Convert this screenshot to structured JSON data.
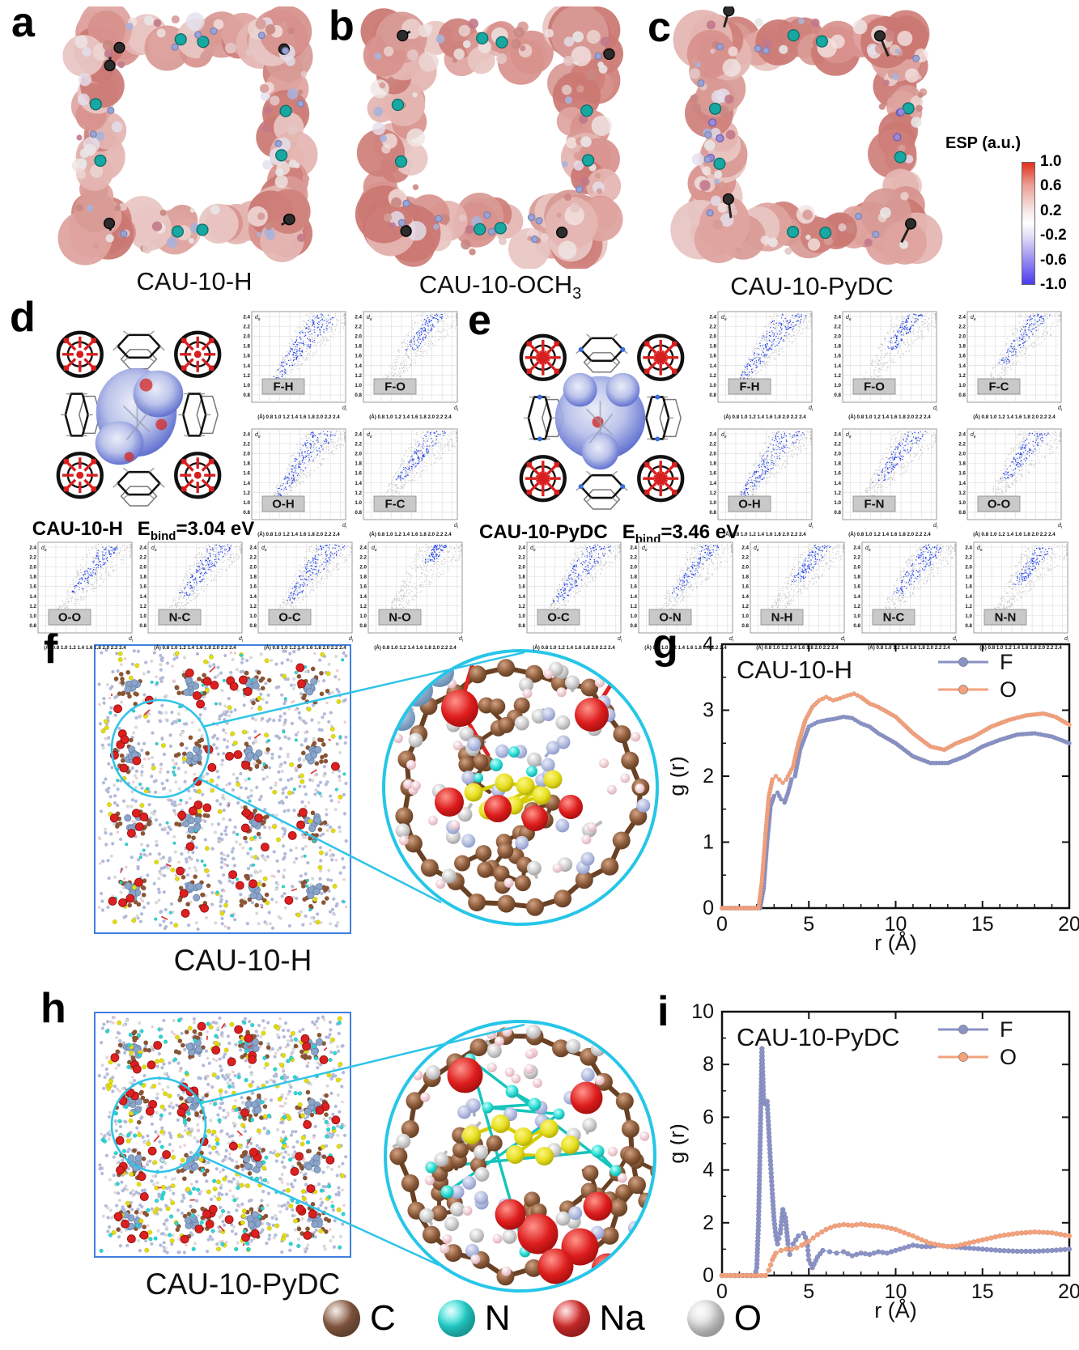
{
  "figure": {
    "panel_letters": {
      "a": "a",
      "b": "b",
      "c": "c",
      "d": "d",
      "e": "e",
      "f": "f",
      "g": "g",
      "h": "h",
      "i": "i"
    }
  },
  "esp_panels": [
    {
      "id": "a",
      "caption": "CAU-10-H",
      "caption_sub": ""
    },
    {
      "id": "b",
      "caption": "CAU-10-OCH",
      "caption_sub": "3"
    },
    {
      "id": "c",
      "caption": "CAU-10-PyDC",
      "caption_sub": ""
    }
  ],
  "colorbar": {
    "title": "ESP (a.u.)",
    "tick_labels": [
      "1.0",
      "0.6",
      "0.2",
      "-0.2",
      "-0.6",
      "-1.0"
    ],
    "top_color": "#e2301c",
    "mid_color": "#ffffff",
    "bottom_color": "#4b3cf0"
  },
  "hirshfeld_panels": [
    {
      "id": "d",
      "model": "CAU-10-H",
      "ebind_symbol": "E",
      "ebind_sub": "bind",
      "ebind_value": "=3.04 eV",
      "grid_pairs": [
        "F-H",
        "F-O",
        "O-H",
        "F-C"
      ],
      "row_pairs": [
        "O-O",
        "N-C",
        "O-C",
        "N-O"
      ]
    },
    {
      "id": "e",
      "model": "CAU-10-PyDC",
      "ebind_symbol": "E",
      "ebind_sub": "bind",
      "ebind_value": "=3.46 eV",
      "grid_pairs": [
        "F-H",
        "F-O",
        "F-C",
        "O-H",
        "F-N",
        "O-O"
      ],
      "row_pairs": [
        "O-C",
        "O-N",
        "N-H",
        "N-C",
        "N-N"
      ]
    }
  ],
  "fingerprint_axes": {
    "y_tick_labels": [
      "2.4",
      "2.2",
      "2.0",
      "1.8",
      "1.6",
      "1.4",
      "1.2",
      "1.0",
      "0.8"
    ],
    "x_tick_line": "(Å) 0.8 1.0 1.2 1.4 1.6 1.8 2.0 2.2 2.4",
    "y_symbol": {
      "main": "d",
      "sub": "e"
    },
    "x_symbol": {
      "main": "d",
      "sub": "i"
    }
  },
  "md_panels": [
    {
      "id": "f",
      "caption": "CAU-10-H"
    },
    {
      "id": "h",
      "caption": "CAU-10-PyDC"
    }
  ],
  "atom_legend": [
    {
      "symbol": "C",
      "color": "#8e5f45"
    },
    {
      "symbol": "N",
      "color": "#26e0da"
    },
    {
      "symbol": "Na",
      "color": "#dd2c2c"
    },
    {
      "symbol": "O",
      "color": "#e2e2e2"
    }
  ],
  "chart_data": [
    {
      "id": "g",
      "type": "line",
      "title": "CAU-10-H",
      "xlabel": "r (Å)",
      "ylabel": "g (r)",
      "xlim": [
        0,
        20
      ],
      "ylim": [
        0,
        4
      ],
      "x_ticks": [
        0,
        5,
        10,
        15,
        20
      ],
      "y_ticks": [
        0,
        1,
        2,
        3,
        4
      ],
      "x_minor": 1,
      "y_minor": 0.5,
      "grid": false,
      "legend_position": "top-right",
      "series": [
        {
          "name": "F",
          "color": "#8a92c6",
          "x": [
            0,
            2.2,
            2.4,
            2.6,
            2.8,
            3.0,
            3.2,
            3.4,
            3.6,
            3.8,
            4.0,
            4.2,
            4.5,
            5.0,
            5.5,
            6.0,
            6.5,
            7.0,
            7.5,
            8.0,
            8.5,
            9.0,
            10,
            11,
            12,
            13,
            14,
            15,
            16,
            17,
            18,
            19,
            20
          ],
          "y": [
            0,
            0,
            0.3,
            1.0,
            1.55,
            1.7,
            1.75,
            1.65,
            1.6,
            1.75,
            1.95,
            2.0,
            2.4,
            2.75,
            2.82,
            2.85,
            2.87,
            2.9,
            2.88,
            2.8,
            2.75,
            2.65,
            2.5,
            2.3,
            2.2,
            2.2,
            2.3,
            2.45,
            2.55,
            2.63,
            2.65,
            2.6,
            2.5
          ]
        },
        {
          "name": "O",
          "color": "#f4a17c",
          "x": [
            0,
            2.1,
            2.3,
            2.5,
            2.7,
            2.9,
            3.1,
            3.3,
            3.5,
            3.7,
            3.9,
            4.1,
            4.4,
            4.8,
            5.2,
            5.6,
            6.0,
            6.4,
            6.8,
            7.2,
            7.6,
            8.0,
            8.5,
            9.0,
            10,
            11,
            12,
            12.8,
            13.5,
            14.5,
            15.5,
            16.5,
            17.5,
            18.5,
            19.2,
            20
          ],
          "y": [
            0,
            0,
            0.4,
            1.1,
            1.7,
            1.95,
            2.0,
            1.95,
            1.9,
            1.95,
            2.05,
            2.15,
            2.5,
            2.85,
            3.05,
            3.15,
            3.2,
            3.15,
            3.18,
            3.22,
            3.25,
            3.2,
            3.1,
            3.05,
            2.9,
            2.65,
            2.45,
            2.4,
            2.5,
            2.6,
            2.75,
            2.85,
            2.92,
            2.95,
            2.9,
            2.78
          ]
        }
      ]
    },
    {
      "id": "i",
      "type": "line",
      "title": "CAU-10-PyDC",
      "xlabel": "r (Å)",
      "ylabel": "g (r)",
      "xlim": [
        0,
        20
      ],
      "ylim": [
        0,
        10
      ],
      "x_ticks": [
        0,
        5,
        10,
        15,
        20
      ],
      "y_ticks": [
        0,
        2,
        4,
        6,
        8,
        10
      ],
      "x_minor": 1,
      "y_minor": 1,
      "grid": false,
      "legend_position": "top-right",
      "series": [
        {
          "name": "F",
          "color": "#8a92c6",
          "x": [
            0,
            1.9,
            2.0,
            2.1,
            2.2,
            2.3,
            2.4,
            2.5,
            2.6,
            2.7,
            2.8,
            2.9,
            3.0,
            3.1,
            3.2,
            3.35,
            3.5,
            3.65,
            3.8,
            3.9,
            4.1,
            4.4,
            4.7,
            4.9,
            5.0,
            5.2,
            5.5,
            5.8,
            6.2,
            6.6,
            7.0,
            7.5,
            8.0,
            8.5,
            9.0,
            9.5,
            10.0,
            10.5,
            11.0,
            11.5,
            12.0,
            12.5,
            13.0,
            14.0,
            15.0,
            16.0,
            17.0,
            18.0,
            19.0,
            20.0
          ],
          "y": [
            0,
            0,
            0.3,
            2.0,
            5.2,
            8.6,
            6.6,
            6.5,
            6.6,
            5.4,
            4.2,
            3.1,
            2.1,
            1.5,
            1.2,
            1.6,
            2.5,
            2.2,
            1.2,
            0.8,
            1.2,
            1.5,
            1.6,
            1.3,
            0.6,
            0.3,
            0.7,
            0.95,
            0.9,
            0.85,
            0.9,
            0.75,
            0.85,
            0.8,
            0.9,
            0.85,
            0.95,
            1.05,
            1.15,
            1.1,
            1.1,
            1.15,
            1.1,
            1.05,
            1.0,
            0.95,
            0.92,
            0.92,
            0.95,
            1.0
          ]
        },
        {
          "name": "O",
          "color": "#f4a17c",
          "x": [
            0,
            2.5,
            2.7,
            2.9,
            3.1,
            3.4,
            3.7,
            4.0,
            4.3,
            4.6,
            5.0,
            5.5,
            6.0,
            6.5,
            7.0,
            7.5,
            8.0,
            8.5,
            9.0,
            9.5,
            10.0,
            10.5,
            11.0,
            11.5,
            12.0,
            12.5,
            13.0,
            13.5,
            14.0,
            15.0,
            16.0,
            17.0,
            18.0,
            19.0,
            20.0
          ],
          "y": [
            0,
            0,
            0.2,
            0.6,
            0.85,
            0.95,
            1.0,
            1.0,
            1.05,
            1.15,
            1.3,
            1.55,
            1.75,
            1.88,
            1.93,
            1.9,
            1.95,
            1.9,
            1.88,
            1.82,
            1.75,
            1.62,
            1.5,
            1.35,
            1.22,
            1.15,
            1.1,
            1.12,
            1.2,
            1.35,
            1.5,
            1.6,
            1.65,
            1.62,
            1.5
          ]
        }
      ]
    }
  ]
}
